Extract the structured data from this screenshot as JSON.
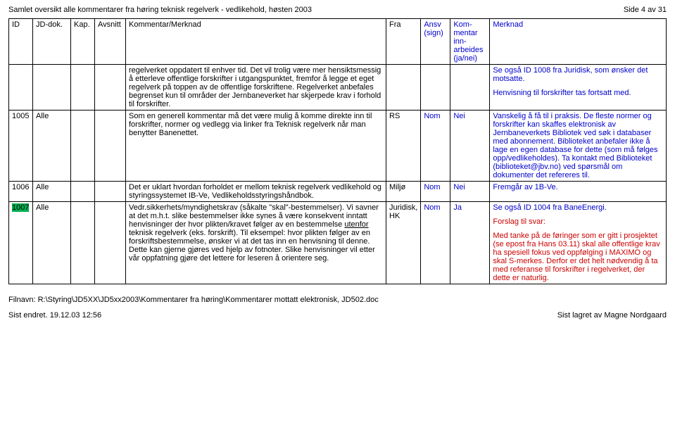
{
  "header": {
    "title": "Samlet oversikt alle kommentarer fra høring teknisk regelverk - vedlikehold, høsten 2003",
    "page_info": "Side 4 av 31"
  },
  "table": {
    "headers": {
      "id": "ID",
      "jd": "JD-dok.",
      "kap": "Kap.",
      "avsnitt": "Avsnitt",
      "kommentar": "Kommentar/Merknad",
      "fra": "Fra",
      "ansv": "Ansv (sign)",
      "inn": "Kom-mentar inn-arbeides (ja/nei)",
      "merknad": "Merknad"
    },
    "rows": [
      {
        "id": "",
        "jd": "",
        "kap": "",
        "avsnitt": "",
        "kommentar": "regelverket oppdatert til enhver tid. Det vil trolig være mer hensiktsmessig å etterleve offentlige forskrifter i utgangspunktet, fremfor å legge et eget regelverk på toppen av de offentlige forskriftene. Regelverket anbefales begrenset kun til områder der Jernbaneverket har skjerpede krav i forhold til forskrifter.",
        "fra": "",
        "ansv": "",
        "inn": "",
        "merknad_parts": [
          {
            "text": "Se også ID 1008 fra Juridisk, som ønsker det motsatte.",
            "class": "blue"
          },
          {
            "text": "Henvisning til forskrifter tas fortsatt med.",
            "class": "blue"
          }
        ]
      },
      {
        "id": "1005",
        "jd": "Alle",
        "kap": "",
        "avsnitt": "",
        "kommentar": "Som en generell kommentar må det være mulig å komme direkte inn til forskrifter, normer og vedlegg via linker fra Teknisk regelverk når man benytter Banenettet.",
        "fra": "RS",
        "ansv": "Nom",
        "inn": "Nei",
        "merknad_parts": [
          {
            "text": "Vanskelig å få til i praksis. De fleste normer og forskrifter kan skaffes elektronisk av Jernbaneverkets Bibliotek ved søk i databaser med abonnement. Biblioteket anbefaler ikke å lage en egen database for dette (som må følges opp/vedlikeholdes). Ta kontakt med Biblioteket (biblioteket@jbv.no) ved spørsmål om dokumenter det refereres til.",
            "class": "blue"
          }
        ]
      },
      {
        "id": "1006",
        "jd": "Alle",
        "kap": "",
        "avsnitt": "",
        "kommentar": "Det er uklart hvordan forholdet er mellom teknisk regelverk vedlikehold og styringssystemet IB-Ve, Vedlikeholdsstyringshåndbok.",
        "fra": "Miljø",
        "ansv": "Nom",
        "inn": "Nei",
        "merknad_parts": [
          {
            "text": "Fremgår av 1B-Ve.",
            "class": "blue"
          }
        ]
      },
      {
        "id": "1007",
        "id_class": "green-bg",
        "jd": "Alle",
        "kap": "",
        "avsnitt": "",
        "kommentar_parts": [
          {
            "text": "Vedr.sikkerhets/myndighetskrav (såkalte \"skal\"-bestemmelser). Vi savner at det m.h.t. slike bestemmelser ikke synes å være konsekvent inntatt henvisninger der hvor plikten/kravet følger av en bestemmelse ",
            "class": ""
          },
          {
            "text": "utenfor",
            "class": "",
            "underline": true
          },
          {
            "text": " teknisk regelverk (eks. forskrift). Til eksempel: hvor plikten følger av en forskriftsbestemmelse, ønsker vi at det tas inn en henvisning til denne. Dette kan gjerne gjøres ved hjelp av fotnoter. Slike henvisninger vil etter vår oppfatning gjøre det lettere for leseren å orientere seg.",
            "class": ""
          }
        ],
        "fra": "Juridisk, HK",
        "ansv": "Nom",
        "inn": "Ja",
        "merknad_parts": [
          {
            "text": "Se også ID 1004 fra BaneEnergi.",
            "class": "blue"
          },
          {
            "text": "Forslag til svar:",
            "class": "red"
          },
          {
            "text": "Med tanke på de føringer som er gitt i prosjektet (se epost fra Hans 03.11) skal alle offentlige krav ha spesiell fokus ved oppfølging i MAXIMO og skal S-merkes. Derfor er det helt nødvendig å ta med referanse til forskrifter i regelverket, der dette er naturlig.",
            "class": "red"
          }
        ]
      }
    ]
  },
  "footer": {
    "filename": "Filnavn: R:\\Styring\\JD5XX\\JD5xx2003\\Kommentarer fra høring\\Kommentarer mottatt elektronisk, JD502.doc",
    "left": "Sist endret. 19.12.03 12:56",
    "right": "Sist lagret av Magne Nordgaard"
  }
}
